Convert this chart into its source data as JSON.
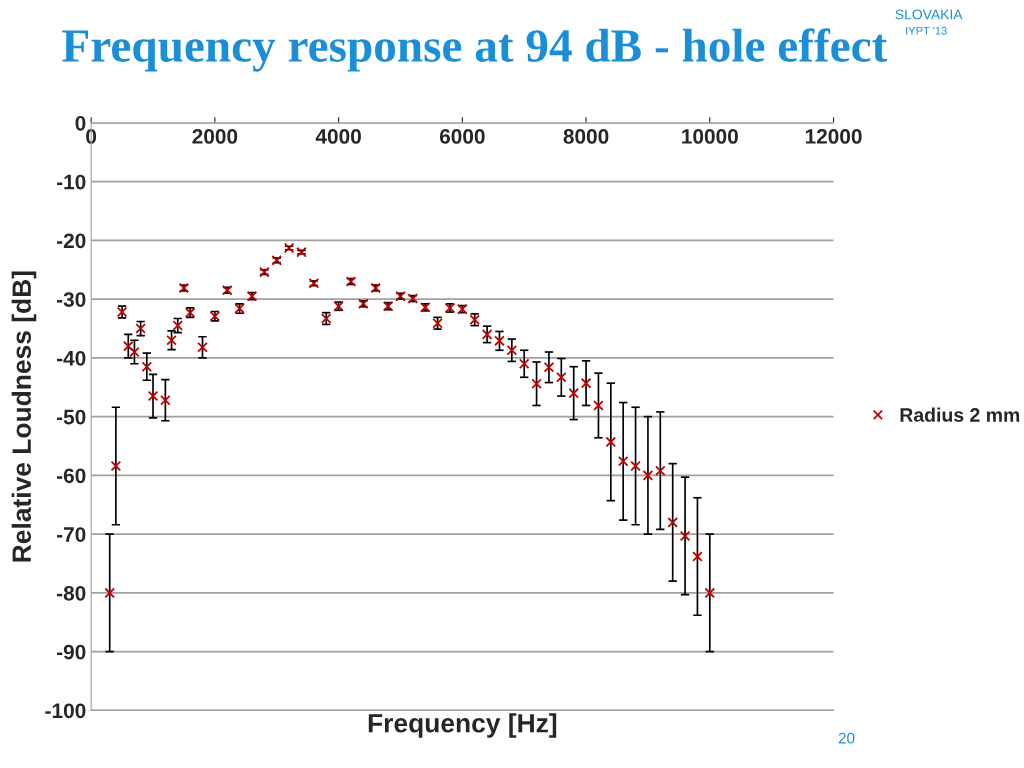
{
  "chart_data": {
    "type": "scatter",
    "title": "Frequency response at 94 dB - hole effect",
    "xlabel": "Frequency [Hz]",
    "ylabel": "Relative Loudness [dB]",
    "annotations": [
      "SLOVAKIA",
      "IYPT '13",
      "20"
    ],
    "series": [
      {
        "name": "Radius 2 mm",
        "color": "#c00000",
        "x": [
          300,
          400,
          500,
          600,
          700,
          800,
          900,
          1000,
          1200,
          1300,
          1400,
          1500,
          1600,
          1800,
          2000,
          2200,
          2400,
          2600,
          2800,
          3000,
          3200,
          3400,
          3600,
          3800,
          4000,
          4200,
          4400,
          4600,
          4800,
          5000,
          5200,
          5400,
          5600,
          5800,
          6000,
          6200,
          6400,
          6600,
          6800,
          7000,
          7200,
          7400,
          7600,
          7800,
          8000,
          8200,
          8400,
          8600,
          8800,
          9000,
          9200,
          9400,
          9600,
          9800,
          10000
        ],
        "values": [
          -80,
          -58.4,
          -32.2,
          -38,
          -39,
          -35,
          -41.5,
          -46.5,
          -47.2,
          -37,
          -34.5,
          -28.1,
          -32.3,
          -38.2,
          -32.9,
          -28.5,
          -31.6,
          -29.5,
          -25.4,
          -23.4,
          -21.3,
          -22,
          -27.3,
          -33.3,
          -31.2,
          -27,
          -30.8,
          -28.1,
          -31.2,
          -29.5,
          -29.9,
          -31.4,
          -34.1,
          -31.5,
          -31.7,
          -33.5,
          -36,
          -37.1,
          -38.7,
          -41,
          -44.4,
          -41.6,
          -43.3,
          -46,
          -44.3,
          -48.1,
          -54.3,
          -57.6,
          -58.4,
          -60,
          -59.2,
          -68,
          -70.3,
          -73.8,
          -80
        ],
        "errors": [
          10,
          10,
          1,
          2,
          2,
          1.2,
          2.3,
          3.7,
          3.5,
          1.6,
          1.2,
          0.5,
          0.8,
          1.8,
          0.8,
          0.5,
          0.8,
          0.6,
          0.4,
          0.4,
          0.3,
          0.3,
          0.4,
          1,
          0.7,
          0.5,
          0.5,
          0.5,
          0.6,
          0.5,
          0.5,
          0.6,
          1,
          0.7,
          0.6,
          1,
          1.4,
          1.6,
          1.9,
          2.3,
          3.7,
          2.6,
          3.2,
          4.5,
          3.8,
          5.5,
          10,
          10,
          10,
          10,
          10,
          10,
          10,
          10,
          10
        ]
      }
    ],
    "xlim": [
      0,
      12000
    ],
    "xticks": [
      0,
      2000,
      4000,
      6000,
      8000,
      10000,
      12000
    ],
    "ylim": [
      -100,
      0
    ],
    "yticks": [
      0,
      -10,
      -20,
      -30,
      -40,
      -50,
      -60,
      -70,
      -80,
      -90,
      -100
    ],
    "grid": "y",
    "legend": "right",
    "marker": "cross"
  }
}
